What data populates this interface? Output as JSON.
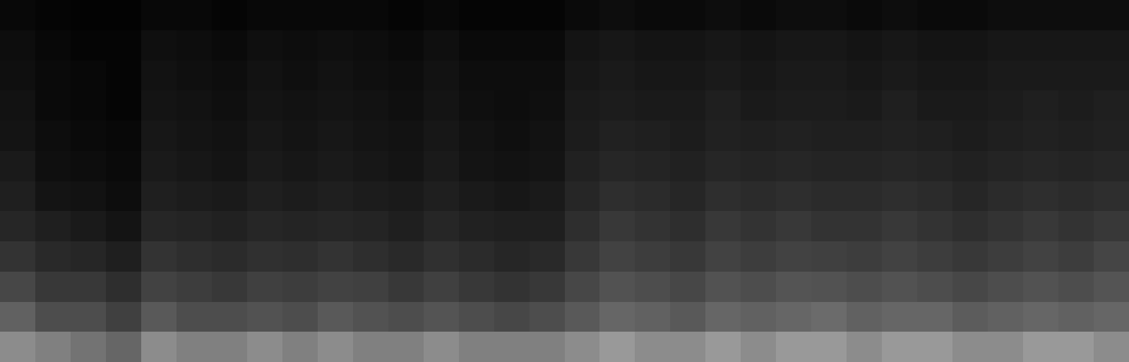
{
  "chart_data": {
    "type": "heatmap",
    "tick_labels": false,
    "zlim": [
      0,
      1
    ],
    "z": [
      [
        0.55,
        0.5,
        0.45,
        0.4,
        0.55,
        0.5,
        0.5,
        0.55,
        0.5,
        0.55,
        0.5,
        0.5,
        0.55,
        0.5,
        0.5,
        0.5,
        0.55,
        0.6,
        0.55,
        0.55,
        0.6,
        0.55,
        0.6,
        0.6,
        0.55,
        0.6,
        0.6,
        0.55,
        0.55,
        0.6,
        0.6,
        0.55
      ],
      [
        0.38,
        0.3,
        0.3,
        0.25,
        0.35,
        0.3,
        0.3,
        0.32,
        0.3,
        0.35,
        0.32,
        0.3,
        0.33,
        0.3,
        0.28,
        0.3,
        0.35,
        0.4,
        0.38,
        0.35,
        0.4,
        0.38,
        0.4,
        0.42,
        0.38,
        0.4,
        0.4,
        0.36,
        0.38,
        0.4,
        0.38,
        0.4
      ],
      [
        0.28,
        0.22,
        0.22,
        0.18,
        0.26,
        0.24,
        0.22,
        0.25,
        0.24,
        0.26,
        0.25,
        0.22,
        0.25,
        0.22,
        0.2,
        0.22,
        0.28,
        0.32,
        0.3,
        0.28,
        0.32,
        0.3,
        0.33,
        0.32,
        0.3,
        0.32,
        0.3,
        0.28,
        0.3,
        0.32,
        0.3,
        0.33
      ],
      [
        0.2,
        0.16,
        0.15,
        0.12,
        0.2,
        0.18,
        0.17,
        0.19,
        0.18,
        0.2,
        0.18,
        0.16,
        0.19,
        0.17,
        0.15,
        0.16,
        0.22,
        0.26,
        0.24,
        0.22,
        0.26,
        0.24,
        0.26,
        0.25,
        0.24,
        0.26,
        0.24,
        0.22,
        0.24,
        0.26,
        0.24,
        0.27
      ],
      [
        0.15,
        0.12,
        0.1,
        0.08,
        0.15,
        0.14,
        0.13,
        0.15,
        0.14,
        0.15,
        0.14,
        0.12,
        0.15,
        0.13,
        0.12,
        0.12,
        0.18,
        0.22,
        0.2,
        0.18,
        0.22,
        0.2,
        0.22,
        0.2,
        0.2,
        0.22,
        0.2,
        0.18,
        0.2,
        0.22,
        0.2,
        0.22
      ],
      [
        0.12,
        0.08,
        0.07,
        0.05,
        0.12,
        0.11,
        0.1,
        0.12,
        0.11,
        0.12,
        0.11,
        0.1,
        0.12,
        0.1,
        0.09,
        0.1,
        0.15,
        0.18,
        0.17,
        0.15,
        0.18,
        0.17,
        0.18,
        0.17,
        0.17,
        0.18,
        0.17,
        0.15,
        0.17,
        0.18,
        0.17,
        0.18
      ],
      [
        0.1,
        0.06,
        0.05,
        0.04,
        0.1,
        0.09,
        0.08,
        0.1,
        0.09,
        0.1,
        0.09,
        0.08,
        0.1,
        0.08,
        0.07,
        0.08,
        0.13,
        0.15,
        0.14,
        0.13,
        0.15,
        0.14,
        0.15,
        0.14,
        0.14,
        0.15,
        0.14,
        0.13,
        0.14,
        0.15,
        0.14,
        0.15
      ],
      [
        0.08,
        0.05,
        0.04,
        0.03,
        0.09,
        0.08,
        0.07,
        0.09,
        0.08,
        0.09,
        0.08,
        0.07,
        0.09,
        0.07,
        0.06,
        0.07,
        0.11,
        0.13,
        0.12,
        0.11,
        0.13,
        0.12,
        0.13,
        0.12,
        0.12,
        0.13,
        0.12,
        0.11,
        0.12,
        0.13,
        0.12,
        0.13
      ],
      [
        0.07,
        0.04,
        0.03,
        0.02,
        0.08,
        0.07,
        0.06,
        0.08,
        0.07,
        0.08,
        0.07,
        0.06,
        0.08,
        0.06,
        0.05,
        0.06,
        0.1,
        0.11,
        0.1,
        0.1,
        0.12,
        0.1,
        0.11,
        0.11,
        0.1,
        0.12,
        0.1,
        0.1,
        0.11,
        0.12,
        0.11,
        0.12
      ],
      [
        0.06,
        0.04,
        0.03,
        0.02,
        0.07,
        0.06,
        0.05,
        0.07,
        0.06,
        0.07,
        0.06,
        0.05,
        0.07,
        0.05,
        0.05,
        0.05,
        0.09,
        0.1,
        0.09,
        0.09,
        0.1,
        0.09,
        0.1,
        0.1,
        0.09,
        0.1,
        0.09,
        0.09,
        0.1,
        0.1,
        0.1,
        0.1
      ],
      [
        0.05,
        0.03,
        0.02,
        0.02,
        0.06,
        0.05,
        0.04,
        0.06,
        0.05,
        0.06,
        0.05,
        0.04,
        0.06,
        0.04,
        0.04,
        0.04,
        0.08,
        0.09,
        0.08,
        0.08,
        0.09,
        0.08,
        0.09,
        0.09,
        0.08,
        0.09,
        0.08,
        0.08,
        0.09,
        0.09,
        0.09,
        0.09
      ],
      [
        0.03,
        0.02,
        0.01,
        0.01,
        0.03,
        0.03,
        0.02,
        0.03,
        0.03,
        0.03,
        0.03,
        0.02,
        0.03,
        0.02,
        0.02,
        0.02,
        0.04,
        0.05,
        0.04,
        0.04,
        0.05,
        0.04,
        0.05,
        0.05,
        0.04,
        0.05,
        0.04,
        0.04,
        0.05,
        0.05,
        0.05,
        0.05
      ]
    ]
  }
}
